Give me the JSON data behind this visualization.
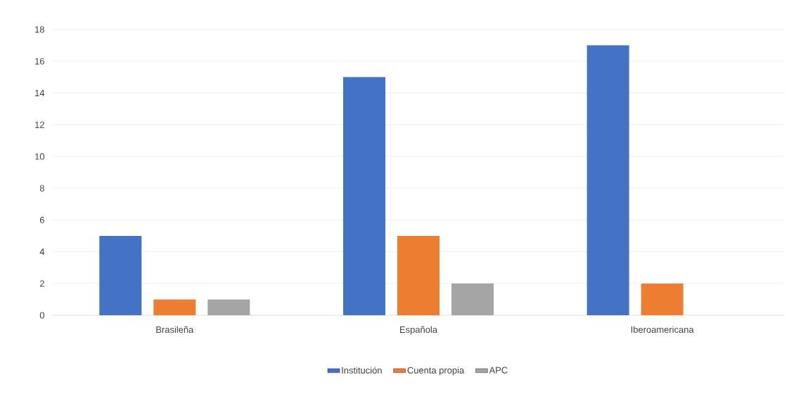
{
  "chart_data": {
    "type": "bar",
    "categories": [
      "Brasileña",
      "Española",
      "Iberoamericana"
    ],
    "series": [
      {
        "name": "Institución",
        "color": "#4472c4",
        "values": [
          5,
          15,
          17
        ]
      },
      {
        "name": "Cuenta propia",
        "color": "#ed7d31",
        "values": [
          1,
          5,
          2
        ]
      },
      {
        "name": "APC",
        "color": "#a5a5a5",
        "values": [
          1,
          2,
          0
        ]
      }
    ],
    "ylim": [
      0,
      18
    ],
    "yticks": [
      0,
      2,
      4,
      6,
      8,
      10,
      12,
      14,
      16,
      18
    ],
    "grid": "y",
    "legend": "bottom"
  }
}
